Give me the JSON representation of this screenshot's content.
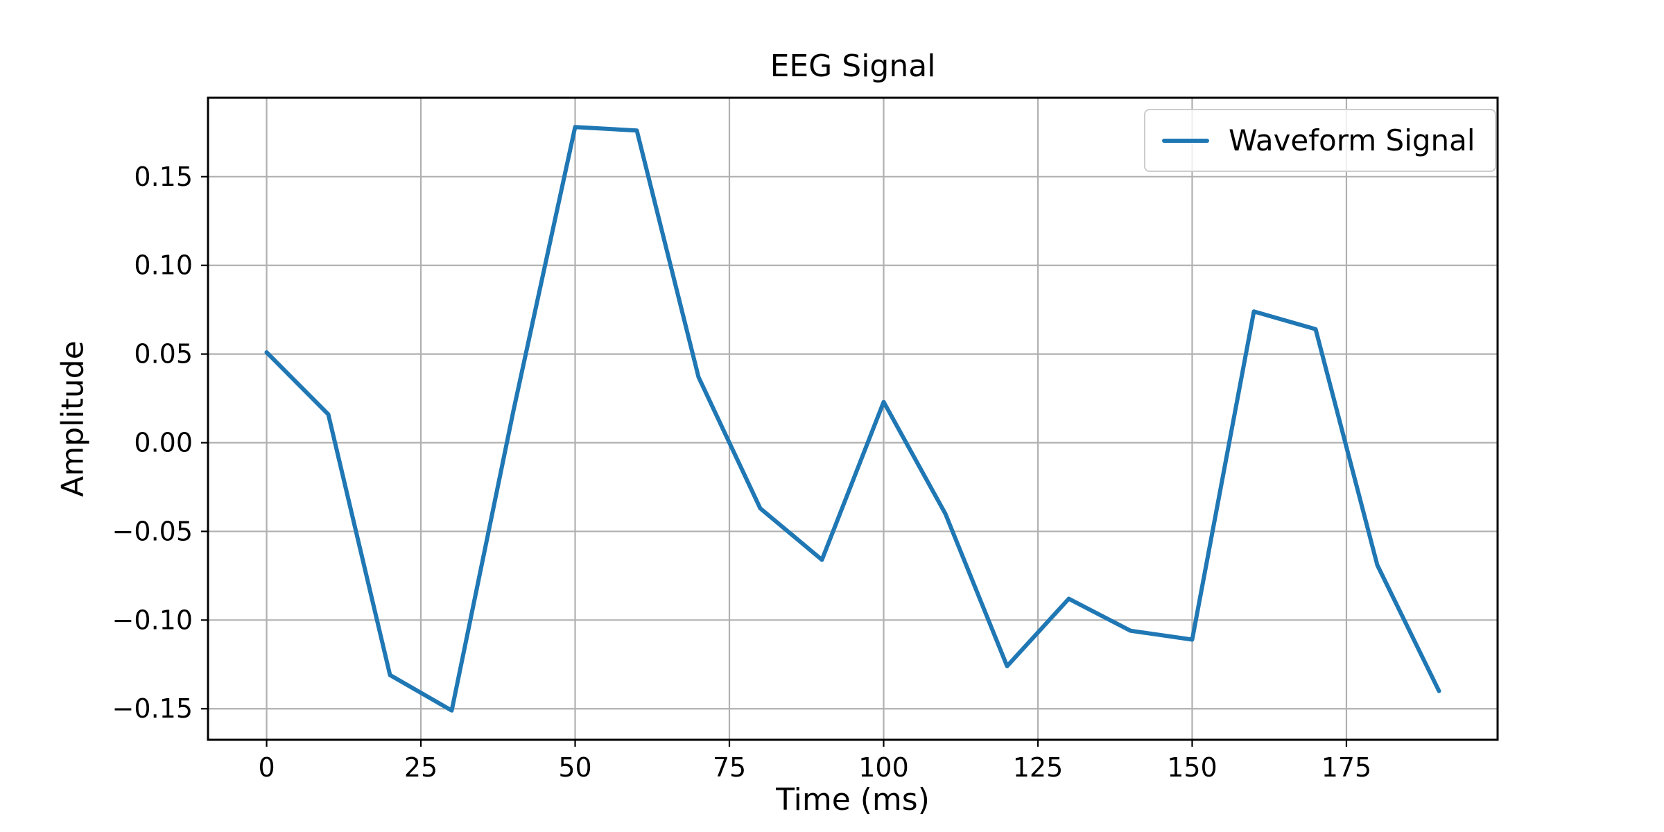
{
  "chart_data": {
    "type": "line",
    "title": "EEG Signal",
    "xlabel": "Time (ms)",
    "ylabel": "Amplitude",
    "x": [
      0,
      10,
      20,
      30,
      40,
      50,
      60,
      70,
      80,
      90,
      100,
      110,
      120,
      130,
      140,
      150,
      160,
      170,
      180,
      190
    ],
    "series": [
      {
        "name": "Waveform Signal",
        "color": "#1f77b4",
        "values": [
          0.051,
          0.016,
          -0.131,
          -0.151,
          0.018,
          0.178,
          0.176,
          0.037,
          -0.037,
          -0.066,
          0.023,
          -0.04,
          -0.126,
          -0.088,
          -0.106,
          -0.111,
          0.074,
          0.064,
          -0.069,
          -0.14
        ]
      }
    ],
    "xlim": [
      -9.5,
      199.5
    ],
    "ylim": [
      -0.1675,
      0.1945
    ],
    "xticks": {
      "values": [
        0,
        25,
        50,
        75,
        100,
        125,
        150,
        175
      ],
      "labels": [
        "0",
        "25",
        "50",
        "75",
        "100",
        "125",
        "150",
        "175"
      ]
    },
    "yticks": {
      "values": [
        -0.15,
        -0.1,
        -0.05,
        0.0,
        0.05,
        0.1,
        0.15
      ],
      "labels": [
        "−0.15",
        "−0.10",
        "−0.05",
        "0.00",
        "0.05",
        "0.10",
        "0.15"
      ]
    },
    "grid": true,
    "legend_position": "upper right",
    "colors": {
      "line": "#1f77b4",
      "grid": "#b0b0b0",
      "spine": "#000000",
      "text": "#000000",
      "legend_border": "#cccccc",
      "background": "#ffffff"
    }
  }
}
